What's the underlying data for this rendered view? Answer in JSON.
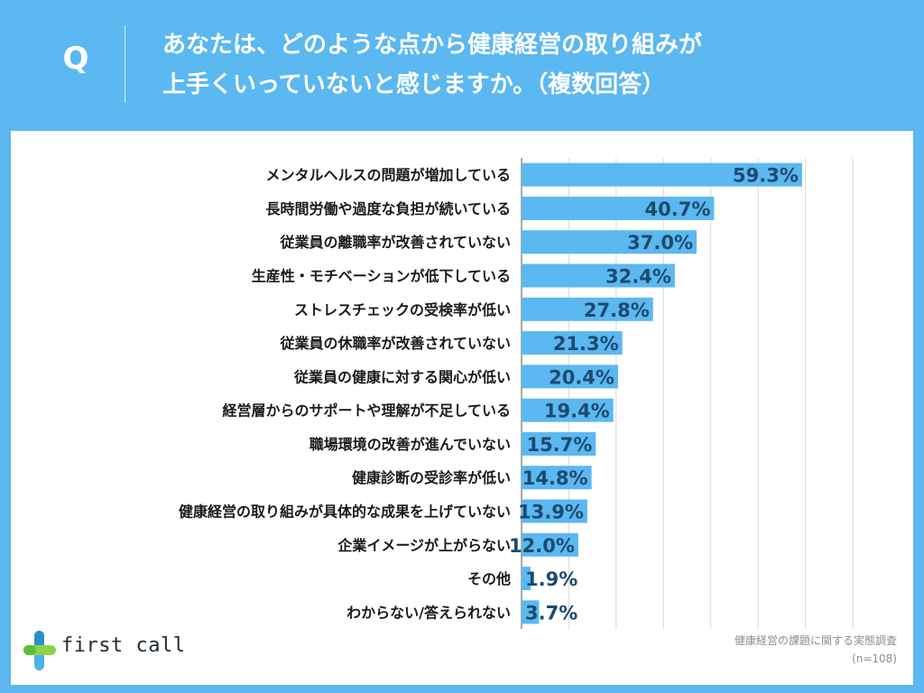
{
  "header": {
    "badge": "Q",
    "question_line1": "あなたは、どのような点から健康経営の取り組みが",
    "question_line2": "上手くいっていないと感じますか。（複数回答）"
  },
  "brand": {
    "name": "first call",
    "icon": "plus-cross-logo-icon"
  },
  "source": {
    "title": "健康経営の課題に関する実態調査",
    "sample": "(n=108)"
  },
  "colors": {
    "background": "#5bb8f0",
    "bar": "#5bb8f0",
    "value_text": "#1d4a6e",
    "grid": "#d9d9d9"
  },
  "chart_data": {
    "type": "bar",
    "orientation": "horizontal",
    "title": "",
    "xlabel": "",
    "ylabel": "",
    "xlim": [
      0,
      70
    ],
    "grid": true,
    "categories": [
      "メンタルヘルスの問題が増加している",
      "長時間労働や過度な負担が続いている",
      "従業員の離職率が改善されていない",
      "生産性・モチベーションが低下している",
      "ストレスチェックの受検率が低い",
      "従業員の休職率が改善されていない",
      "従業員の健康に対する関心が低い",
      "経営層からのサポートや理解が不足している",
      "職場環境の改善が進んでいない",
      "健康診断の受診率が低い",
      "健康経営の取り組みが具体的な成果を上げていない",
      "企業イメージが上がらない",
      "その他",
      "わからない/答えられない"
    ],
    "values": [
      59.3,
      40.7,
      37.0,
      32.4,
      27.8,
      21.3,
      20.4,
      19.4,
      15.7,
      14.8,
      13.9,
      12.0,
      1.9,
      3.7
    ],
    "value_labels": [
      "59.3%",
      "40.7%",
      "37.0%",
      "32.4%",
      "27.8%",
      "21.3%",
      "20.4%",
      "19.4%",
      "15.7%",
      "14.8%",
      "13.9%",
      "12.0%",
      "1.9%",
      "3.7%"
    ]
  }
}
